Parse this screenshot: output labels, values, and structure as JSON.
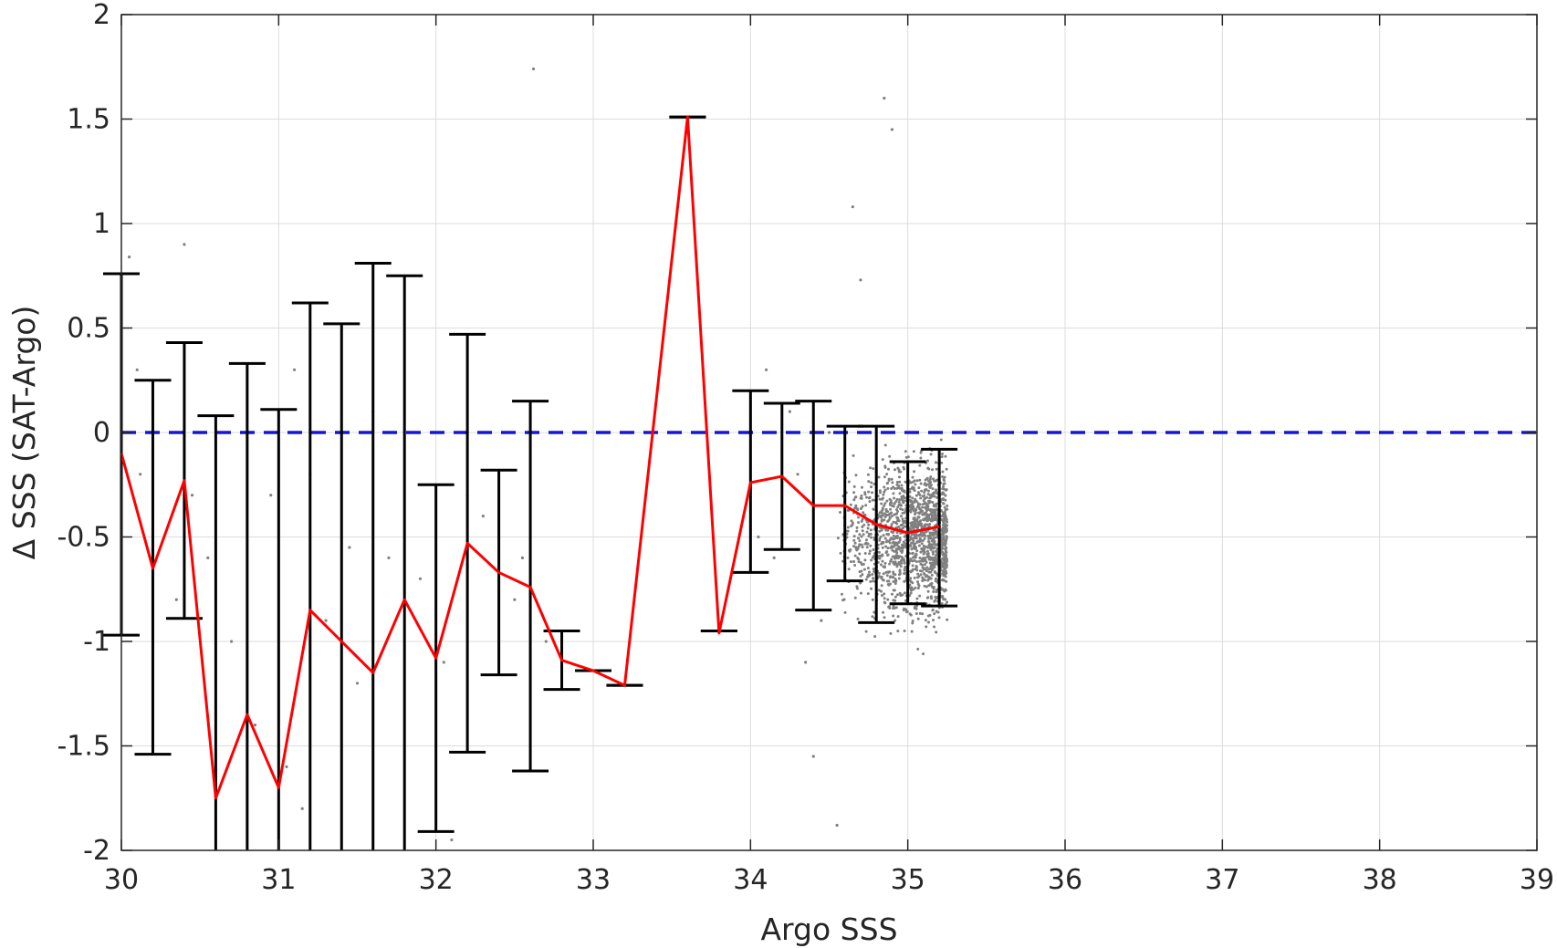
{
  "chart_data": {
    "type": "scatter",
    "title": "",
    "xlabel": "Argo SSS",
    "ylabel": "Δ SSS (SAT-Argo)",
    "xlim": [
      30,
      39
    ],
    "ylim": [
      -2,
      2
    ],
    "xticks": [
      30,
      31,
      32,
      33,
      34,
      35,
      36,
      37,
      38,
      39
    ],
    "yticks": [
      -2,
      -1.5,
      -1,
      -0.5,
      0,
      0.5,
      1,
      1.5,
      2
    ],
    "xtick_labels": [
      "30",
      "31",
      "32",
      "33",
      "34",
      "35",
      "36",
      "37",
      "38",
      "39"
    ],
    "ytick_labels": [
      "-2",
      "-1.5",
      "-1",
      "-0.5",
      "0",
      "0.5",
      "1",
      "1.5",
      "2"
    ],
    "grid": true,
    "reference_line": {
      "y": 0,
      "style": "dashed",
      "color": "#1515d6"
    },
    "colors": {
      "mean": "#ff0000",
      "errorbar": "#000000",
      "points": "#808080",
      "axes": "#262626",
      "grid": "#dcdcdc"
    },
    "bins": {
      "x": [
        30.0,
        30.2,
        30.4,
        30.6,
        30.8,
        31.0,
        31.2,
        31.4,
        31.6,
        31.8,
        32.0,
        32.2,
        32.4,
        32.6,
        32.8,
        33.0,
        33.2,
        33.6,
        33.8,
        34.0,
        34.2,
        34.4,
        34.6,
        34.8,
        35.0,
        35.2
      ],
      "mean": [
        -0.1,
        -0.65,
        -0.23,
        -1.75,
        -1.35,
        -1.7,
        -0.85,
        -1.0,
        -1.15,
        -0.8,
        -1.08,
        -0.53,
        -0.67,
        -0.74,
        -1.09,
        -1.14,
        -1.21,
        1.51,
        -0.96,
        -0.24,
        -0.21,
        -0.35,
        -0.35,
        -0.44,
        -0.48,
        -0.45
      ],
      "lower": [
        -0.97,
        -1.54,
        -0.89,
        -2.0,
        -2.0,
        -2.0,
        -2.0,
        -2.0,
        -2.0,
        -2.0,
        -1.91,
        -1.53,
        -1.16,
        -1.62,
        -1.23,
        -1.14,
        -1.21,
        1.51,
        -0.95,
        -0.67,
        -0.56,
        -0.85,
        -0.71,
        -0.91,
        -0.82,
        -0.83
      ],
      "upper": [
        0.76,
        0.25,
        0.43,
        0.08,
        0.33,
        0.11,
        0.62,
        0.52,
        0.81,
        0.75,
        -0.25,
        0.47,
        -0.18,
        0.15,
        -0.95,
        -1.14,
        -1.21,
        1.51,
        -0.95,
        0.2,
        0.14,
        0.15,
        0.03,
        0.03,
        -0.14,
        -0.08
      ]
    },
    "scatter_points": [
      [
        30.05,
        0.84
      ],
      [
        30.1,
        0.3
      ],
      [
        30.12,
        -0.2
      ],
      [
        30.4,
        0.9
      ],
      [
        30.45,
        -0.3
      ],
      [
        30.55,
        -0.6
      ],
      [
        30.7,
        -1.0
      ],
      [
        30.85,
        -1.4
      ],
      [
        31.05,
        -1.6
      ],
      [
        31.15,
        -1.8
      ],
      [
        30.2,
        -1.5
      ],
      [
        30.35,
        -0.8
      ],
      [
        31.3,
        -0.9
      ],
      [
        31.5,
        -1.2
      ],
      [
        31.7,
        -0.6
      ],
      [
        31.9,
        -0.7
      ],
      [
        32.05,
        -1.1
      ],
      [
        32.1,
        -1.95
      ],
      [
        32.0,
        0.0
      ],
      [
        32.3,
        -0.4
      ],
      [
        32.5,
        -0.8
      ],
      [
        32.55,
        -0.6
      ],
      [
        32.7,
        -1.0
      ],
      [
        32.2,
        -0.3
      ],
      [
        32.62,
        1.74
      ],
      [
        31.2,
        -0.2
      ],
      [
        31.6,
        0.1
      ],
      [
        31.1,
        0.3
      ],
      [
        31.45,
        -0.55
      ],
      [
        30.95,
        -0.3
      ],
      [
        34.85,
        1.6
      ],
      [
        34.9,
        1.45
      ],
      [
        34.65,
        1.08
      ],
      [
        34.7,
        0.73
      ],
      [
        34.4,
        -1.55
      ],
      [
        34.55,
        -1.88
      ],
      [
        34.35,
        -1.1
      ],
      [
        34.45,
        -0.9
      ],
      [
        34.1,
        0.3
      ],
      [
        34.25,
        0.1
      ],
      [
        34.05,
        -0.5
      ],
      [
        34.15,
        -0.6
      ],
      [
        34.3,
        -0.2
      ],
      [
        34.5,
        0.0
      ],
      [
        34.6,
        -0.4
      ]
    ],
    "dense_cloud": {
      "x_range": [
        34.55,
        35.25
      ],
      "center": [
        35.05,
        -0.5
      ],
      "spread_y": 0.45
    }
  }
}
